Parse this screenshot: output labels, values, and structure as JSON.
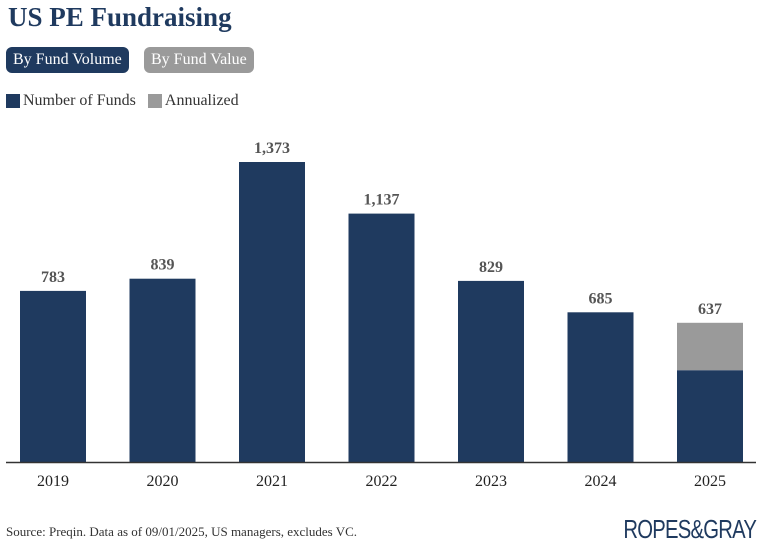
{
  "title": "US PE Fundraising",
  "toggle": {
    "volume_label": "By Fund Volume",
    "value_label": "By Fund Value"
  },
  "legend": {
    "funds_label": "Number of Funds",
    "annualized_label": "Annualized"
  },
  "colors": {
    "funds": "#1f3a5f",
    "annualized": "#9a9a9a",
    "axis": "#333333"
  },
  "chart_data": {
    "type": "bar",
    "title": "US PE Fundraising",
    "categories": [
      "2019",
      "2020",
      "2021",
      "2022",
      "2023",
      "2024",
      "2025"
    ],
    "series": [
      {
        "name": "Number of Funds",
        "values": [
          783,
          839,
          1373,
          1137,
          829,
          685,
          420
        ]
      },
      {
        "name": "Annualized",
        "values": [
          0,
          0,
          0,
          0,
          0,
          0,
          217
        ]
      }
    ],
    "labels": [
      "783",
      "839",
      "1,373",
      "1,137",
      "829",
      "685",
      "637"
    ],
    "stacked": true,
    "ylim": [
      0,
      1373
    ],
    "xlabel": "",
    "ylabel": "",
    "grid": false,
    "legend_position": "top-left"
  },
  "footer": {
    "source": "Source: Preqin. Data as of 09/01/2025, US managers, excludes VC.",
    "logo_text": "ROPES&GRAY"
  }
}
